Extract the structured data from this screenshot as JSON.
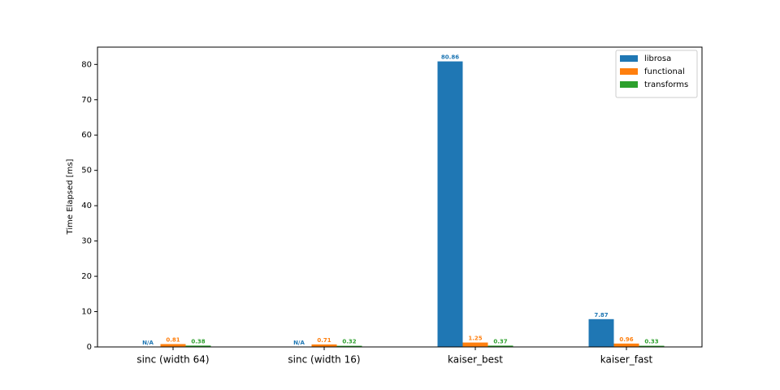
{
  "chart_data": {
    "type": "bar",
    "categories": [
      "sinc (width 64)",
      "sinc (width 16)",
      "kaiser_best",
      "kaiser_fast"
    ],
    "y_label": "Time Elapsed [ms]",
    "series": [
      {
        "name": "librosa",
        "color": "#1f77b4",
        "values": [
          null,
          null,
          80.86,
          7.87
        ],
        "value_labels": [
          "N/A",
          "N/A",
          "80.86",
          "7.87"
        ]
      },
      {
        "name": "functional",
        "color": "#ff7f0e",
        "values": [
          0.81,
          0.71,
          1.25,
          0.96
        ],
        "value_labels": [
          "0.81",
          "0.71",
          "1.25",
          "0.96"
        ]
      },
      {
        "name": "transforms",
        "color": "#2ca02c",
        "values": [
          0.38,
          0.32,
          0.37,
          0.33
        ],
        "value_labels": [
          "0.38",
          "0.32",
          "0.37",
          "0.33"
        ]
      }
    ],
    "ylim": [
      0,
      84.9
    ],
    "yticks": [
      0,
      10,
      20,
      30,
      40,
      50,
      60,
      70,
      80
    ],
    "legend": "upper right",
    "grid": false
  }
}
